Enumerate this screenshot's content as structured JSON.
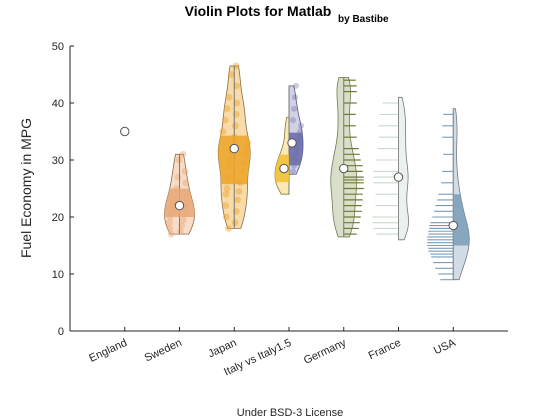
{
  "chart_data": {
    "type": "violin",
    "title": "Violin Plots for Matlab",
    "subtitle": "by Bastibe",
    "ylabel": "Fuel Economy in MPG",
    "caption": "Under BSD-3 License",
    "ylim": [
      0,
      50
    ],
    "yticks": [
      0,
      10,
      20,
      30,
      40,
      50
    ],
    "categories": [
      "England",
      "Sweden",
      "Japan",
      "Italy vs Italy1.5",
      "Germany",
      "France",
      "USA"
    ],
    "grid": false,
    "groups": [
      {
        "name": "England",
        "style": "point",
        "median": 35,
        "points": [
          35
        ]
      },
      {
        "name": "Sweden",
        "style": "filled-scatter",
        "color": "#e8a878",
        "median": 22,
        "q1": 20,
        "q3": 25,
        "range": [
          17,
          31
        ],
        "points": [
          17,
          17.5,
          18,
          18.5,
          19,
          19.5,
          20,
          20.5,
          21,
          21.5,
          22,
          22.5,
          23,
          24,
          25,
          26,
          27,
          28,
          30,
          31
        ]
      },
      {
        "name": "Japan",
        "style": "filled-scatter",
        "color": "#eca428",
        "median": 32,
        "q1": 25.5,
        "q3": 34.5,
        "range": [
          18,
          46.5
        ],
        "points": [
          18,
          19,
          20,
          21,
          22,
          23,
          24,
          24.5,
          25,
          26,
          27,
          28,
          29,
          29.5,
          30,
          31,
          31.5,
          32,
          32.5,
          33,
          34,
          35,
          36,
          37,
          38,
          39,
          40,
          41,
          43,
          45,
          46.5
        ]
      },
      {
        "name": "Italy vs Italy1.5",
        "style": "split",
        "left": {
          "color": "#f0c030",
          "median": 28.5,
          "q1": 26,
          "q3": 31,
          "range": [
            24,
            37.5
          ]
        },
        "right": {
          "color": "#6868a8",
          "median": 33,
          "q1": 29,
          "q3": 35,
          "range": [
            27.5,
            43
          ],
          "points": [
            28,
            29,
            30,
            31,
            32,
            33,
            34,
            35,
            36,
            37,
            39,
            41,
            43
          ]
        }
      },
      {
        "name": "Germany",
        "style": "rug",
        "color": "#a8b888",
        "rugColor": "#6f7a30",
        "median": 28.5,
        "q1": 24,
        "q3": 31,
        "range": [
          16.5,
          44.5
        ],
        "points": [
          17,
          18,
          19,
          20,
          21,
          22,
          23,
          24,
          25,
          26,
          26.5,
          27,
          28,
          29,
          30,
          31,
          32,
          34,
          36,
          38,
          40,
          42,
          43,
          44
        ]
      },
      {
        "name": "France",
        "style": "half-rug",
        "color": "#c8d8cc",
        "median": 27,
        "range": [
          16,
          41
        ],
        "points": [
          17,
          18,
          19,
          20,
          22,
          24,
          26,
          27,
          28,
          30,
          32,
          34,
          36,
          38,
          40
        ]
      },
      {
        "name": "USA",
        "style": "half-rug",
        "color": "#7a9cb8",
        "median": 18.5,
        "q1": 15,
        "q3": 24,
        "range": [
          9,
          39
        ],
        "points": [
          9,
          10,
          11,
          12,
          13,
          13.5,
          14,
          14.5,
          15,
          15.5,
          16,
          16.5,
          17,
          17.5,
          18,
          18.5,
          19,
          20,
          21,
          22,
          23,
          24,
          26,
          28,
          31,
          34,
          36,
          38
        ]
      }
    ]
  }
}
